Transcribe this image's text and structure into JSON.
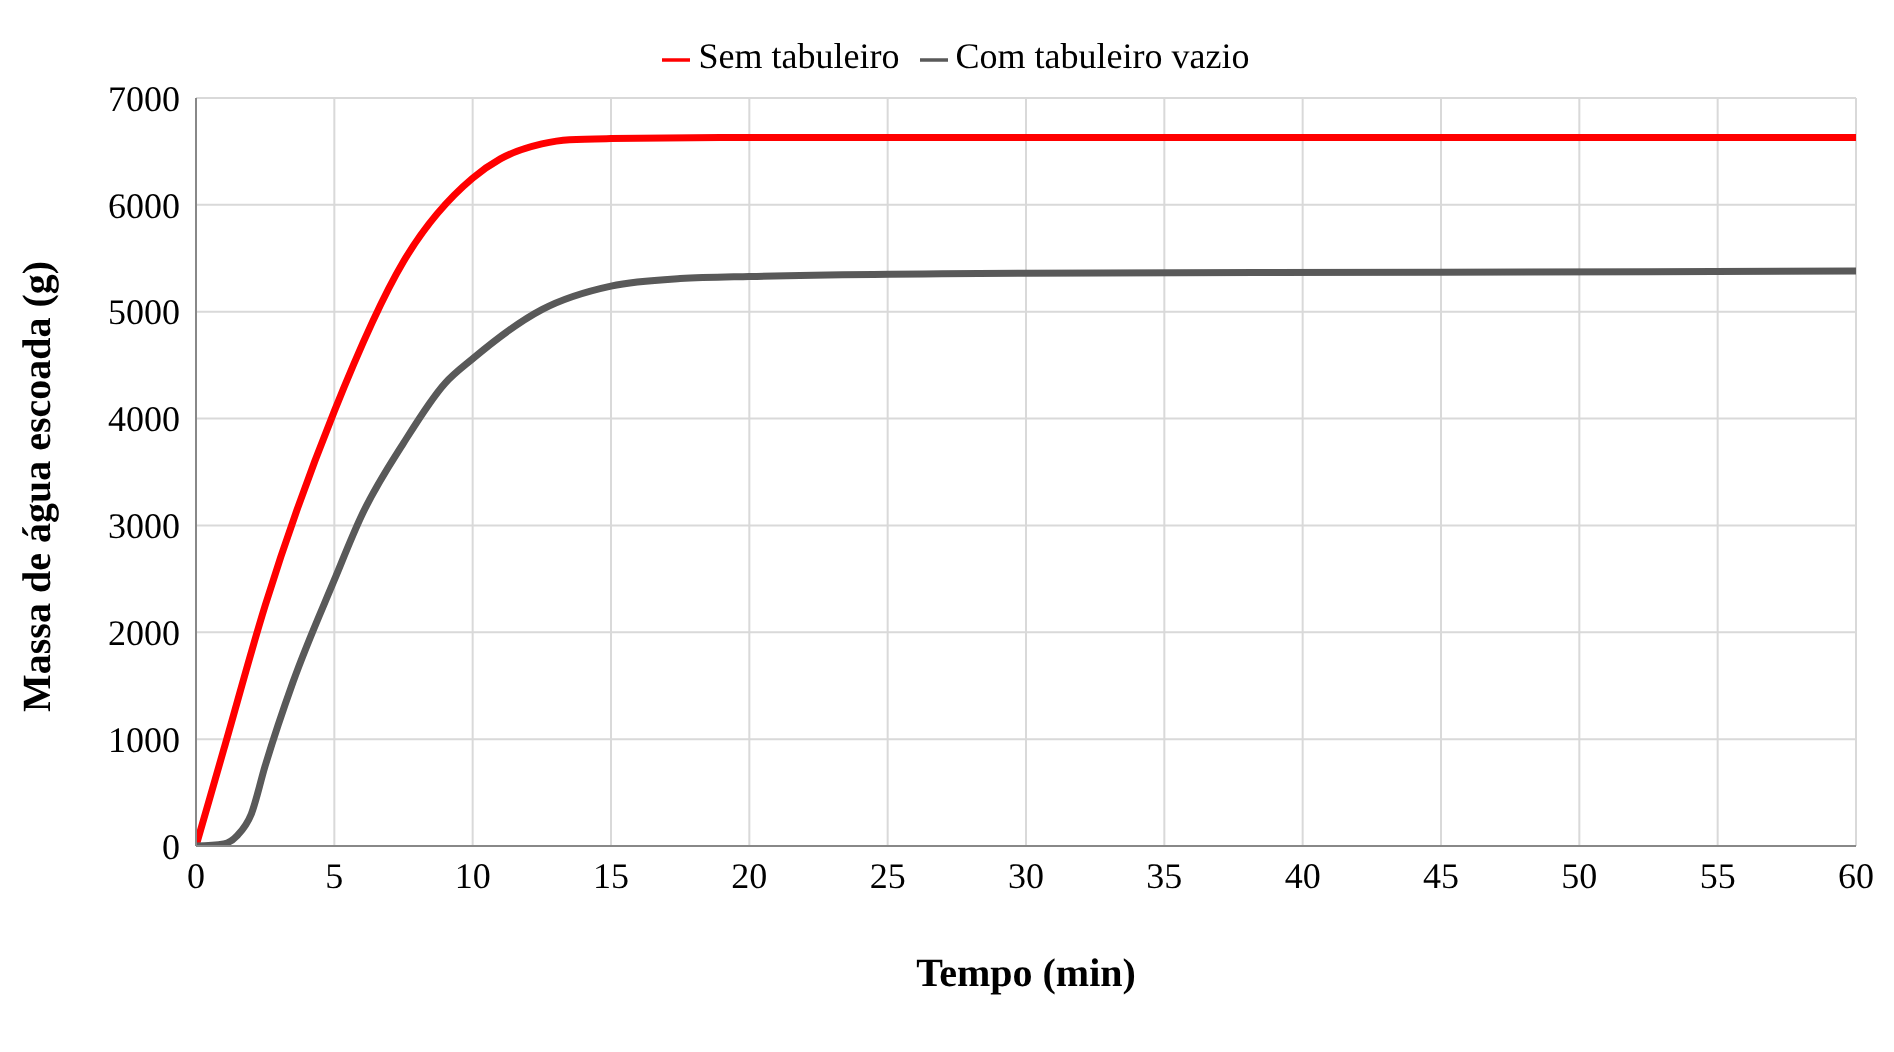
{
  "chart_data": {
    "type": "line",
    "xlabel": "Tempo (min)",
    "ylabel": "Massa de água escoada (g)",
    "xlim": [
      0,
      60
    ],
    "xticks": [
      0,
      5,
      10,
      15,
      20,
      25,
      30,
      35,
      40,
      45,
      50,
      55,
      60
    ],
    "ylim": [
      0,
      7000
    ],
    "yticks": [
      0,
      1000,
      2000,
      3000,
      4000,
      5000,
      6000,
      7000
    ],
    "grid": true,
    "legend": "top",
    "marker": "none",
    "line_style": "solid",
    "series": [
      {
        "name": "Sem tabuleiro",
        "color": "#ff0000",
        "x": [
          0,
          1,
          2.5,
          5,
          7.5,
          10,
          11,
          12.5,
          13.5,
          15,
          20,
          30,
          45,
          60
        ],
        "values": [
          0,
          900,
          2250,
          4070,
          5470,
          6250,
          6430,
          6570,
          6610,
          6620,
          6630,
          6630,
          6630,
          6630
        ]
      },
      {
        "name": "Com tabuleiro vazio",
        "color": "#595959",
        "x": [
          0,
          1,
          1.5,
          2,
          2.5,
          3.5,
          5,
          6,
          7.5,
          9,
          10,
          12.5,
          15,
          17.5,
          20,
          30,
          45,
          60
        ],
        "values": [
          0,
          20,
          100,
          300,
          750,
          1530,
          2490,
          3100,
          3770,
          4330,
          4560,
          5020,
          5240,
          5310,
          5330,
          5360,
          5370,
          5380
        ]
      }
    ]
  }
}
